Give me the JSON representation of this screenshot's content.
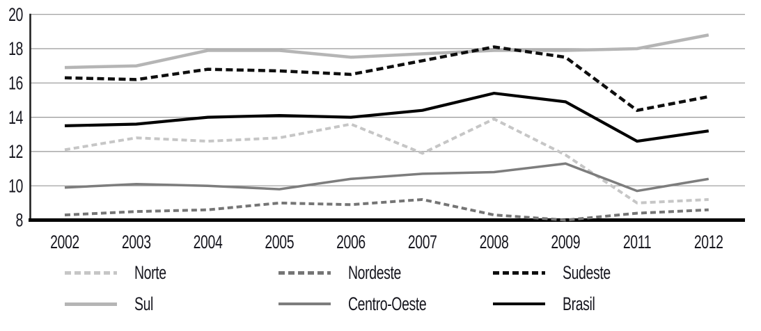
{
  "chart_data": {
    "type": "line",
    "title": "",
    "x_categories": [
      "2002",
      "2003",
      "2004",
      "2005",
      "2006",
      "2007",
      "2008",
      "2009",
      "2011",
      "2012"
    ],
    "yticks": [
      8,
      10,
      12,
      14,
      16,
      18,
      20
    ],
    "ylim": [
      8,
      20
    ],
    "grid": true,
    "legend_position": "bottom",
    "series": [
      {
        "name": "Norte",
        "color": "#c6c6c6",
        "style": "dashed",
        "width": 4,
        "dash": "8 5",
        "values": [
          12.1,
          12.8,
          12.6,
          12.8,
          13.6,
          11.9,
          13.9,
          11.8,
          9.0,
          9.2
        ]
      },
      {
        "name": "Nordeste",
        "color": "#757575",
        "style": "dashed",
        "width": 4,
        "dash": "8 5",
        "values": [
          8.3,
          8.5,
          8.6,
          9.0,
          8.9,
          9.2,
          8.3,
          8.0,
          8.4,
          8.6
        ]
      },
      {
        "name": "Sudeste",
        "color": "#0e0e0e",
        "style": "dashed",
        "width": 4.5,
        "dash": "10 5.5",
        "values": [
          16.3,
          16.2,
          16.8,
          16.7,
          16.5,
          17.3,
          18.1,
          17.5,
          14.4,
          15.2
        ]
      },
      {
        "name": "Sul",
        "color": "#b5b5b5",
        "style": "solid",
        "width": 4.5,
        "dash": "",
        "values": [
          16.9,
          17.0,
          17.9,
          17.9,
          17.5,
          17.7,
          17.9,
          17.9,
          18.0,
          18.8
        ]
      },
      {
        "name": "Centro-Oeste",
        "color": "#7d7d7d",
        "style": "solid",
        "width": 3.5,
        "dash": "",
        "values": [
          9.9,
          10.1,
          10.0,
          9.8,
          10.4,
          10.7,
          10.8,
          11.3,
          9.7,
          10.4
        ]
      },
      {
        "name": "Brasil",
        "color": "#000000",
        "style": "solid",
        "width": 4.2,
        "dash": "",
        "values": [
          13.5,
          13.6,
          14.0,
          14.1,
          14.0,
          14.4,
          15.4,
          14.9,
          12.6,
          13.2
        ]
      }
    ],
    "legend_rows": [
      [
        "Norte",
        "Nordeste",
        "Sudeste"
      ],
      [
        "Sul",
        "Centro-Oeste",
        "Brasil"
      ]
    ],
    "z_order": [
      "Sul",
      "Norte",
      "Centro-Oeste",
      "Nordeste",
      "Sudeste",
      "Brasil"
    ]
  },
  "style": {
    "gridline_color": "#969696",
    "y_axis_color": "#222222",
    "x_axis_color": "#000000",
    "text_color": "#16161e"
  }
}
